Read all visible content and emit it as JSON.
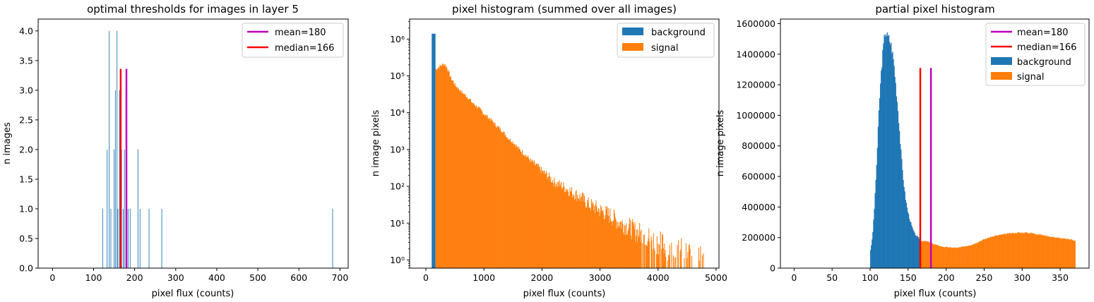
{
  "chart_data": [
    {
      "type": "bar",
      "title": "optimal thresholds for images in layer 5",
      "xlabel": "pixel flux (counts)",
      "ylabel": "n images",
      "xlim": [
        -35,
        720
      ],
      "ylim": [
        0,
        4.2
      ],
      "xticks": [
        0,
        100,
        200,
        300,
        400,
        500,
        600,
        700
      ],
      "yticks": [
        "0.0",
        "0.5",
        "1.0",
        "1.5",
        "2.0",
        "2.5",
        "3.0",
        "3.5",
        "4.0"
      ],
      "ytick_values": [
        0,
        0.5,
        1,
        1.5,
        2,
        2.5,
        3,
        3.5,
        4
      ],
      "bars": [
        {
          "x": 122,
          "count": 1
        },
        {
          "x": 133,
          "count": 2
        },
        {
          "x": 138,
          "count": 4
        },
        {
          "x": 142,
          "count": 1
        },
        {
          "x": 150,
          "count": 2
        },
        {
          "x": 153,
          "count": 3
        },
        {
          "x": 157,
          "count": 4
        },
        {
          "x": 159,
          "count": 1
        },
        {
          "x": 163,
          "count": 3
        },
        {
          "x": 166,
          "count": 1
        },
        {
          "x": 168,
          "count": 2
        },
        {
          "x": 172,
          "count": 1
        },
        {
          "x": 175,
          "count": 2
        },
        {
          "x": 179,
          "count": 1
        },
        {
          "x": 184,
          "count": 1
        },
        {
          "x": 189,
          "count": 1
        },
        {
          "x": 208,
          "count": 2
        },
        {
          "x": 213,
          "count": 1
        },
        {
          "x": 235,
          "count": 1
        },
        {
          "x": 266,
          "count": 1
        },
        {
          "x": 682,
          "count": 1
        }
      ],
      "lines": [
        {
          "name": "mean=180",
          "x": 180,
          "color": "#bf00bf"
        },
        {
          "name": "median=166",
          "x": 166,
          "color": "#ff0000"
        }
      ],
      "vline_top": 3.36,
      "bar_color": "#1f77b4",
      "legend": [
        "mean=180",
        "median=166"
      ],
      "legend_loc": "upper right"
    },
    {
      "type": "histogram",
      "title": "pixel histogram (summed over all images)",
      "xlabel": "pixel flux (counts)",
      "ylabel": "n image pixels",
      "yscale": "log",
      "xlim": [
        -280,
        5050
      ],
      "ylim": [
        0.6,
        3500000
      ],
      "xticks": [
        0,
        1000,
        2000,
        3000,
        4000,
        5000
      ],
      "yticks": [
        "10⁰",
        "10¹",
        "10²",
        "10³",
        "10⁴",
        "10⁵",
        "10⁶"
      ],
      "ytick_values": [
        1,
        10,
        100,
        1000,
        10000,
        100000,
        1000000
      ],
      "series": [
        {
          "name": "background",
          "color": "#1f77b4",
          "x_range": [
            100,
            166
          ],
          "peak": 1400000
        },
        {
          "name": "signal",
          "color": "#ff7f0e",
          "x_range": [
            166,
            4780
          ],
          "profile": [
            [
              166,
              150000
            ],
            [
              250,
              190000
            ],
            [
              300,
              210000
            ],
            [
              330,
              200000
            ],
            [
              360,
              160000
            ],
            [
              420,
              90000
            ],
            [
              500,
              55000
            ],
            [
              600,
              37000
            ],
            [
              800,
              18000
            ],
            [
              1000,
              9000
            ],
            [
              1200,
              4500
            ],
            [
              1400,
              2100
            ],
            [
              1600,
              1000
            ],
            [
              1800,
              480
            ],
            [
              2000,
              250
            ],
            [
              2200,
              130
            ],
            [
              2500,
              70
            ],
            [
              2800,
              32
            ],
            [
              3000,
              22
            ],
            [
              3300,
              11
            ],
            [
              3600,
              6
            ],
            [
              3900,
              3.5
            ],
            [
              4200,
              2
            ],
            [
              4500,
              1.5
            ],
            [
              4780,
              1
            ]
          ]
        }
      ],
      "legend": [
        "background",
        "signal"
      ],
      "legend_loc": "upper right"
    },
    {
      "type": "histogram",
      "title": "partial pixel histogram",
      "xlabel": "pixel flux (counts)",
      "ylabel": "n image pixels",
      "xlim": [
        -18,
        388
      ],
      "ylim": [
        0,
        1630000
      ],
      "xticks": [
        0,
        50,
        100,
        150,
        200,
        250,
        300,
        350
      ],
      "yticks": [
        "0",
        "200000",
        "400000",
        "600000",
        "800000",
        "1000000",
        "1200000",
        "1400000",
        "1600000"
      ],
      "ytick_values": [
        0,
        200000,
        400000,
        600000,
        800000,
        1000000,
        1200000,
        1400000,
        1600000
      ],
      "series": [
        {
          "name": "background",
          "color": "#1f77b4",
          "x_range": [
            100,
            166
          ],
          "profile": [
            [
              100,
              0
            ],
            [
              100.5,
              120000
            ],
            [
              103,
              200000
            ],
            [
              106,
              430000
            ],
            [
              109,
              730000
            ],
            [
              112,
              1080000
            ],
            [
              115,
              1320000
            ],
            [
              118,
              1480000
            ],
            [
              120,
              1560000
            ],
            [
              122,
              1520000
            ],
            [
              125,
              1500000
            ],
            [
              128,
              1450000
            ],
            [
              131,
              1350000
            ],
            [
              134,
              1180000
            ],
            [
              137,
              1010000
            ],
            [
              140,
              790000
            ],
            [
              143,
              610000
            ],
            [
              146,
              470000
            ],
            [
              149,
              380000
            ],
            [
              152,
              320000
            ],
            [
              155,
              270000
            ],
            [
              158,
              230000
            ],
            [
              161,
              210000
            ],
            [
              163,
              200000
            ],
            [
              166,
              190000
            ]
          ]
        },
        {
          "name": "signal",
          "color": "#ff7f0e",
          "x_range": [
            166,
            370
          ],
          "profile": [
            [
              166,
              180000
            ],
            [
              175,
              175000
            ],
            [
              185,
              155000
            ],
            [
              195,
              140000
            ],
            [
              205,
              135000
            ],
            [
              215,
              133000
            ],
            [
              225,
              143000
            ],
            [
              235,
              155000
            ],
            [
              245,
              178000
            ],
            [
              255,
              198000
            ],
            [
              265,
              212000
            ],
            [
              275,
              220000
            ],
            [
              285,
              228000
            ],
            [
              295,
              232000
            ],
            [
              305,
              232000
            ],
            [
              315,
              228000
            ],
            [
              325,
              218000
            ],
            [
              335,
              208000
            ],
            [
              345,
              200000
            ],
            [
              355,
              192000
            ],
            [
              365,
              187000
            ],
            [
              370,
              180000
            ]
          ]
        }
      ],
      "lines": [
        {
          "name": "mean=180",
          "x": 180,
          "color": "#bf00bf"
        },
        {
          "name": "median=166",
          "x": 166,
          "color": "#ff0000"
        }
      ],
      "vline_top": 1310000,
      "legend": [
        "mean=180",
        "median=166",
        "background",
        "signal"
      ],
      "legend_loc": "upper right"
    }
  ]
}
